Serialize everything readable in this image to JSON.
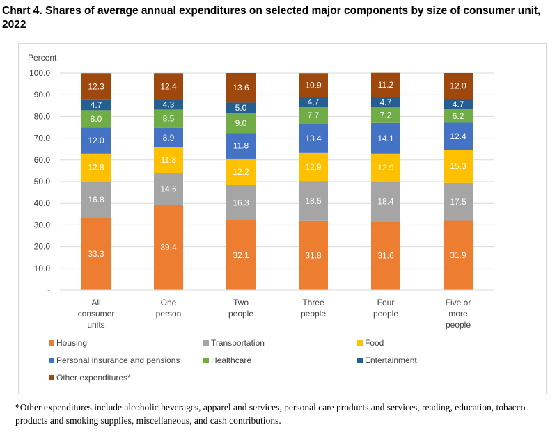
{
  "page": {
    "title": "Chart 4. Shares of average annual expenditures on selected major components by size of consumer unit, 2022",
    "footnote": "*Other expenditures include alcoholic beverages, apparel and services, personal care products and services, reading, education, tobacco products and smoking supplies, miscellaneous, and cash contributions."
  },
  "chart_data": {
    "type": "bar",
    "stacked": true,
    "title": "Chart 4. Shares of average annual expenditures on selected major components by size of consumer unit, 2022",
    "ylabel": "Percent",
    "ylim": [
      0,
      100
    ],
    "yticks": [
      0,
      10,
      20,
      30,
      40,
      50,
      60,
      70,
      80,
      90,
      100
    ],
    "ytick_labels": [
      "-",
      "10.0",
      "20.0",
      "30.0",
      "40.0",
      "50.0",
      "60.0",
      "70.0",
      "80.0",
      "90.0",
      "100.0"
    ],
    "grid": true,
    "legend_position": "bottom",
    "categories": [
      [
        "All",
        "consumer",
        "units"
      ],
      [
        "One",
        "person"
      ],
      [
        "Two",
        "people"
      ],
      [
        "Three",
        "people"
      ],
      [
        "Four",
        "people"
      ],
      [
        "Five or",
        "more",
        "people"
      ]
    ],
    "series": [
      {
        "name": "Housing",
        "color": "#ED7D31",
        "values": [
          33.3,
          39.4,
          32.1,
          31.8,
          31.6,
          31.9
        ]
      },
      {
        "name": "Transportation",
        "color": "#A5A5A5",
        "values": [
          16.8,
          14.6,
          16.3,
          18.5,
          18.4,
          17.5
        ]
      },
      {
        "name": "Food",
        "color": "#FFC000",
        "values": [
          12.8,
          11.8,
          12.2,
          12.9,
          12.9,
          15.3
        ]
      },
      {
        "name": "Personal insurance and pensions",
        "color": "#4472C4",
        "values": [
          12.0,
          8.9,
          11.8,
          13.4,
          14.1,
          12.4
        ]
      },
      {
        "name": "Healthcare",
        "color": "#70AD47",
        "values": [
          8.0,
          8.5,
          9.0,
          7.7,
          7.2,
          6.2
        ]
      },
      {
        "name": "Entertainment",
        "color": "#255E91",
        "values": [
          4.7,
          4.3,
          5.0,
          4.7,
          4.7,
          4.7
        ]
      },
      {
        "name": "Other expenditures*",
        "color": "#9E480E",
        "values": [
          12.3,
          12.4,
          13.6,
          10.9,
          11.2,
          12.0
        ]
      }
    ]
  }
}
